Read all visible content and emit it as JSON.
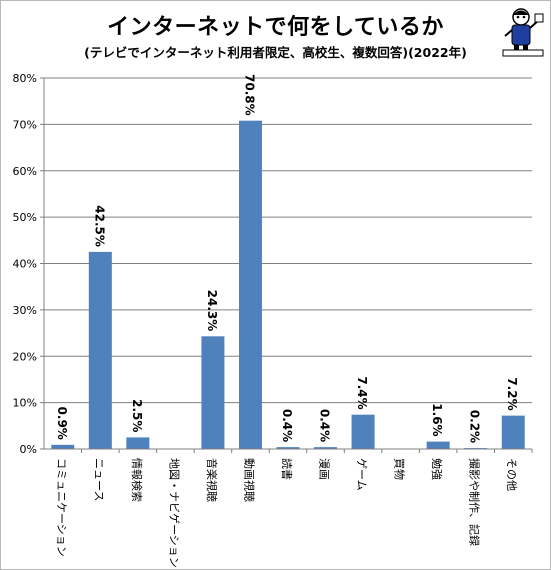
{
  "title": "インターネットで何をしているか",
  "subtitle": "(テレビでインターネット利用者限定、高校生、複数回答)(2022年)",
  "chart_data": {
    "type": "bar",
    "categories": [
      "コミュニケーション",
      "ニュース",
      "情報検索",
      "地図・ナビゲーション",
      "音楽視聴",
      "動画視聴",
      "読書",
      "漫画",
      "ゲーム",
      "買物",
      "勉強",
      "撮影や制作、記録",
      "その他"
    ],
    "values": [
      0.9,
      42.5,
      2.5,
      0.0,
      24.3,
      70.8,
      0.4,
      0.4,
      7.4,
      0.0,
      1.6,
      0.2,
      7.2
    ],
    "data_labels": [
      "0.9%",
      "42.5%",
      "2.5%",
      "",
      "24.3%",
      "70.8%",
      "0.4%",
      "0.4%",
      "7.4%",
      "",
      "1.6%",
      "0.2%",
      "7.2%"
    ],
    "yticks": [
      "0%",
      "10%",
      "20%",
      "30%",
      "40%",
      "50%",
      "60%",
      "70%",
      "80%"
    ],
    "ylim": [
      0,
      80
    ],
    "grid": true,
    "bar_color": "#4f81bd"
  }
}
